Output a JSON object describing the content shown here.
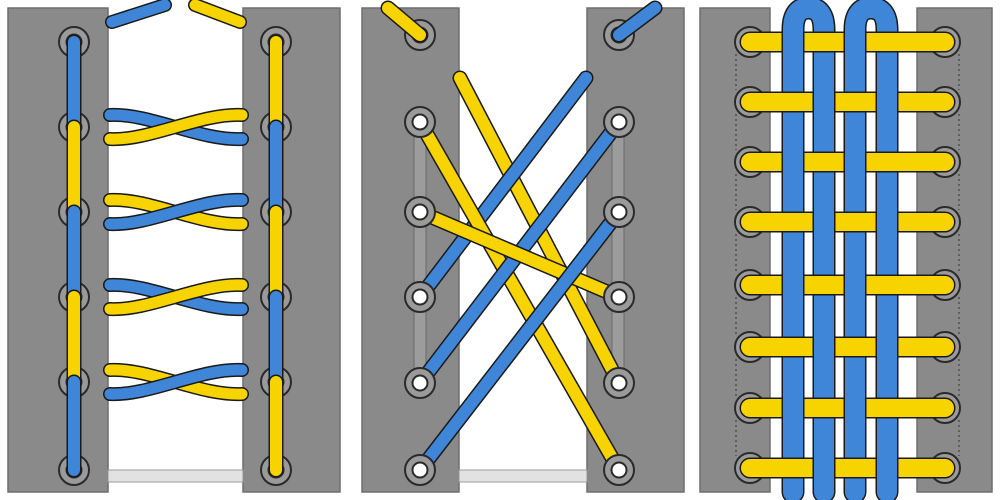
{
  "colors": {
    "background": "#ffffff",
    "panel_flap": "#8a8a8a",
    "flap_edge": "#6e6e6e",
    "gap": "#ffffff",
    "eyelet_ring": "#9a9a9a",
    "eyelet_outline": "#2a2a2a",
    "eyelet_hole": "#ffffff",
    "lace_blue": "#3f86d8",
    "lace_yellow": "#f7d300",
    "lace_outline": "#1a1a1a",
    "bottom_bar": "#e2e2e2"
  },
  "panels": [
    {
      "name": "panel-left-lacing",
      "pattern": "alternating-twisted-rungs",
      "eyelet_rows": 6,
      "lace_colors": [
        "blue",
        "yellow"
      ]
    },
    {
      "name": "panel-middle-lacing",
      "pattern": "double-diagonal-cross",
      "eyelet_rows": 6,
      "lace_colors": [
        "blue",
        "yellow"
      ]
    },
    {
      "name": "panel-right-lacing",
      "pattern": "woven-lattice",
      "eyelet_rows": 8,
      "lace_colors": [
        "blue",
        "yellow"
      ]
    }
  ],
  "icons": [
    "eyelet-icon",
    "lace-blue-icon",
    "lace-yellow-icon"
  ]
}
